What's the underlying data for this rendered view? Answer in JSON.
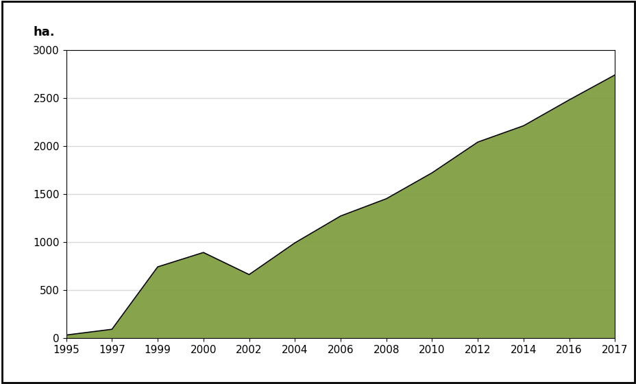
{
  "chart_data": {
    "type": "area",
    "y_label": "ha.",
    "categories": [
      "1995",
      "1997",
      "1999",
      "2000",
      "2002",
      "2004",
      "2006",
      "2008",
      "2010",
      "2012",
      "2014",
      "2016",
      "2017"
    ],
    "values": [
      30,
      90,
      740,
      890,
      660,
      990,
      1270,
      1450,
      1720,
      2040,
      2210,
      2480,
      2740
    ],
    "color": "#7a9a3a",
    "ylim": [
      0,
      3000
    ],
    "yticks": [
      0,
      500,
      1000,
      1500,
      2000,
      2500,
      3000
    ],
    "grid": true
  }
}
